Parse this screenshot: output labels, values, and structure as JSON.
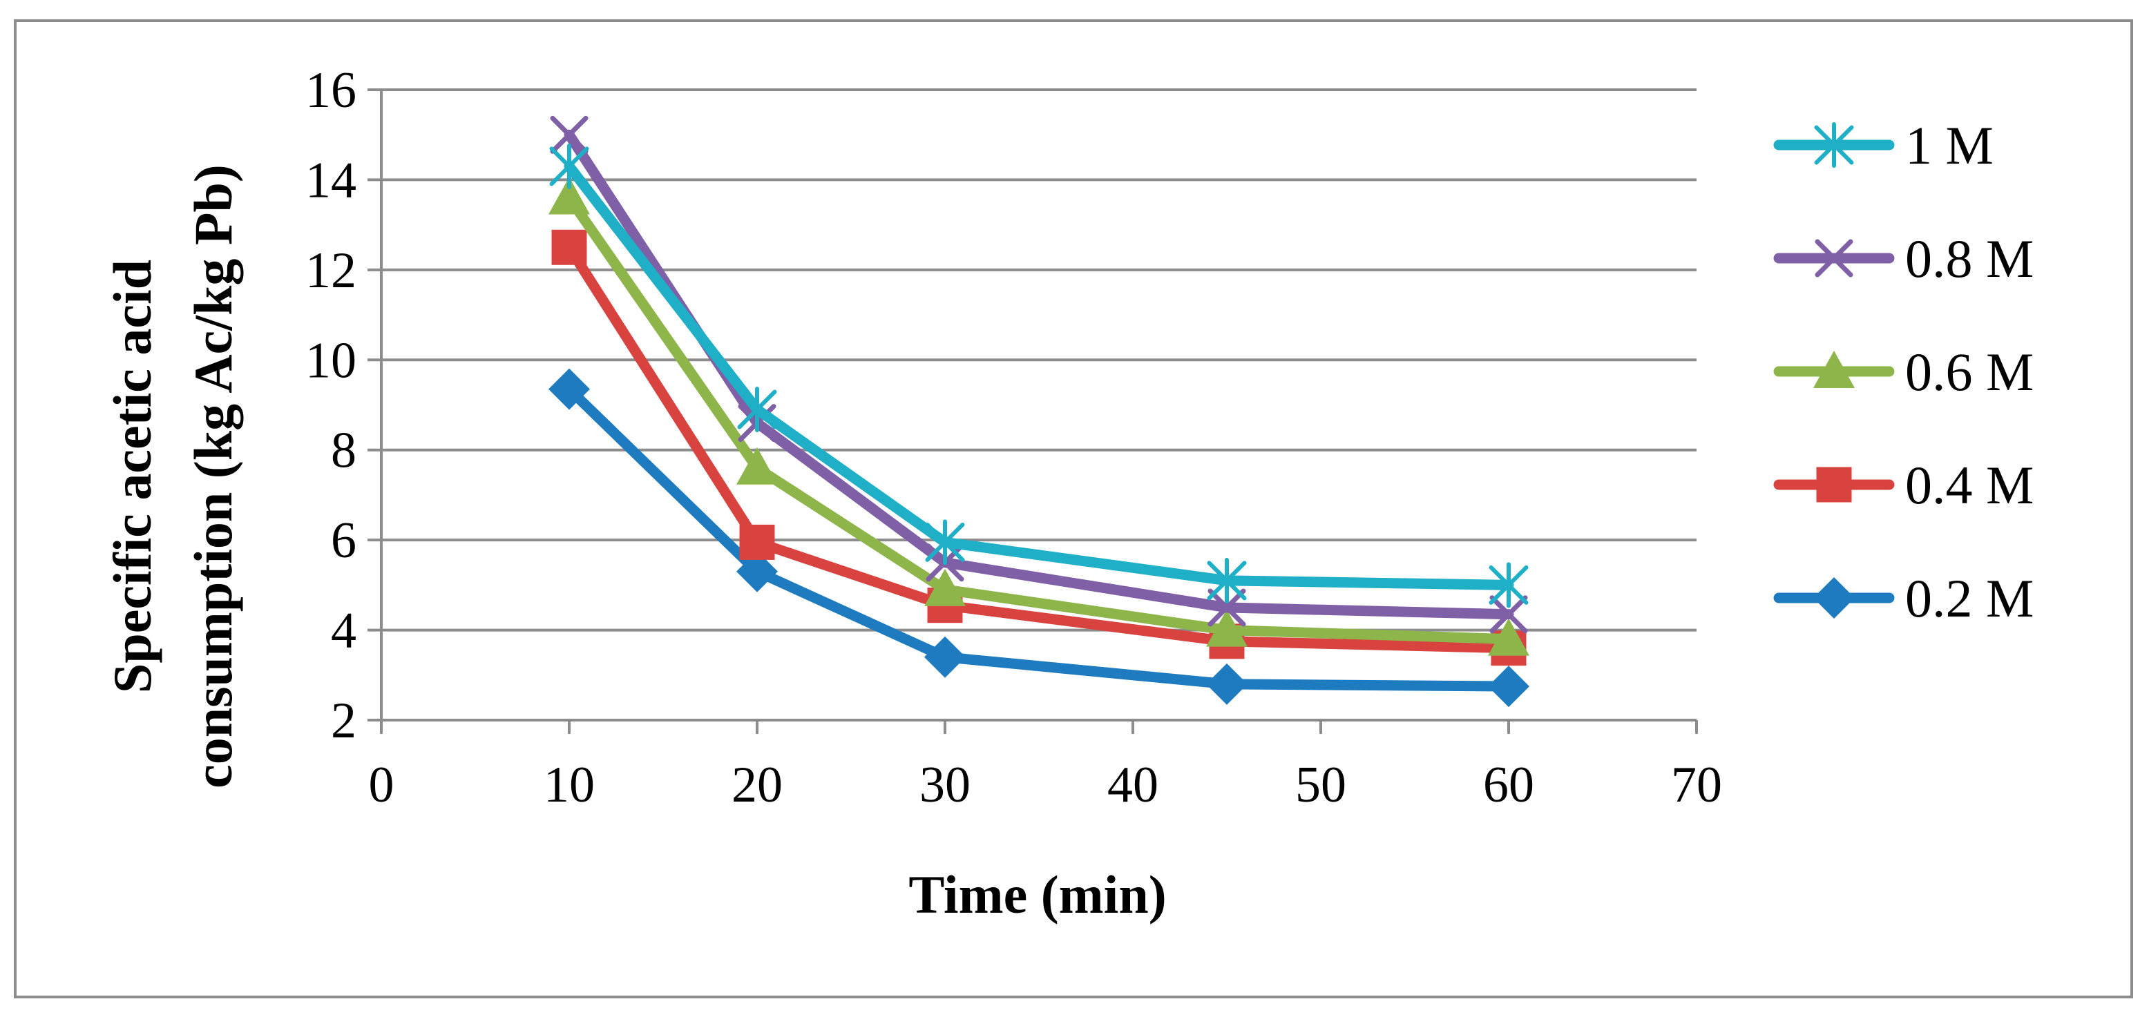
{
  "chart_data": {
    "type": "line",
    "title": "",
    "xlabel": "Time (min)",
    "ylabel_lines": [
      "Specific acetic acid",
      "consumption (kg Ac/kg Pb)"
    ],
    "xlim": [
      0,
      70
    ],
    "ylim": [
      2,
      16
    ],
    "x_ticks": [
      0,
      10,
      20,
      30,
      40,
      50,
      60,
      70
    ],
    "y_ticks": [
      2,
      4,
      6,
      8,
      10,
      12,
      14,
      16
    ],
    "grid": "horizontal",
    "legend_position": "right",
    "x": [
      10,
      20,
      30,
      45,
      60
    ],
    "series": [
      {
        "name": "1 M",
        "color": "#1FAFC6",
        "marker": "asterisk",
        "values": [
          14.3,
          8.9,
          5.95,
          5.1,
          5.0
        ]
      },
      {
        "name": "0.8 M",
        "color": "#7F5FA6",
        "marker": "x",
        "values": [
          15.0,
          8.6,
          5.5,
          4.5,
          4.35
        ]
      },
      {
        "name": "0.6 M",
        "color": "#8DB54A",
        "marker": "triangle",
        "values": [
          13.6,
          7.6,
          4.9,
          4.0,
          3.8
        ]
      },
      {
        "name": "0.4 M",
        "color": "#D9433F",
        "marker": "square",
        "values": [
          12.5,
          5.95,
          4.55,
          3.75,
          3.6
        ]
      },
      {
        "name": "0.2 M",
        "color": "#1E7BBF",
        "marker": "diamond",
        "values": [
          9.35,
          5.3,
          3.4,
          2.8,
          2.75
        ]
      }
    ]
  }
}
